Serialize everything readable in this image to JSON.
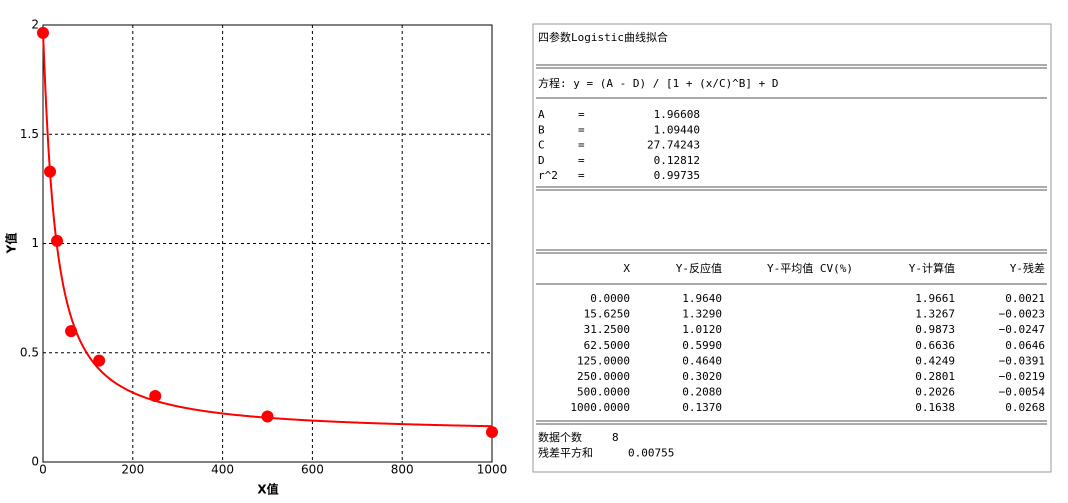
{
  "chart_data": {
    "type": "scatter",
    "x_label": "X值",
    "y_label": "Y值",
    "x": [
      0,
      15.625,
      31.25,
      62.5,
      125,
      250,
      500,
      1000
    ],
    "series": [
      {
        "color": "#ff0000",
        "values": [
          1.964,
          1.329,
          1.012,
          0.599,
          0.464,
          0.302,
          0.208,
          0.137
        ]
      }
    ],
    "fit_color": "#ff0000",
    "xlim": [
      0,
      1000
    ],
    "ylim": [
      0,
      2
    ],
    "xticks": [
      0,
      200,
      400,
      600,
      800,
      1000
    ],
    "yticks": [
      0,
      0.5,
      1,
      1.5,
      2
    ],
    "grid": true
  },
  "report": {
    "title": "四参数Logistic曲线拟合",
    "equation": "方程: y = (A - D) / [1 + (x/C)^B] + D",
    "params": [
      {
        "name": "A",
        "value": 1.96608
      },
      {
        "name": "B",
        "value": 1.0944,
        "label": "1.09440"
      },
      {
        "name": "C",
        "value": 27.74243
      },
      {
        "name": "D",
        "value": 0.12812
      },
      {
        "name": "r^2",
        "value": 0.99735
      }
    ],
    "eq_sign": "=",
    "table": {
      "headers": [
        "X",
        "Y-反应值",
        "Y-平均值 CV(%)",
        "Y-计算值",
        "Y-残差"
      ],
      "rows": [
        [
          "0.0000",
          "1.9640",
          "1.9661",
          "0.0021"
        ],
        [
          "15.6250",
          "1.3290",
          "1.3267",
          "−0.0023"
        ],
        [
          "31.2500",
          "1.0120",
          "0.9873",
          "−0.0247"
        ],
        [
          "62.5000",
          "0.5990",
          "0.6636",
          "0.0646"
        ],
        [
          "125.0000",
          "0.4640",
          "0.4249",
          "−0.0391"
        ],
        [
          "250.0000",
          "0.3020",
          "0.2801",
          "−0.0219"
        ],
        [
          "500.0000",
          "0.2080",
          "0.2026",
          "−0.0054"
        ],
        [
          "1000.0000",
          "0.1370",
          "0.1638",
          "0.0268"
        ]
      ]
    },
    "footer": [
      {
        "label": "数据个数",
        "value": 8
      },
      {
        "label": "残差平方和",
        "value": 0.00755
      }
    ]
  }
}
